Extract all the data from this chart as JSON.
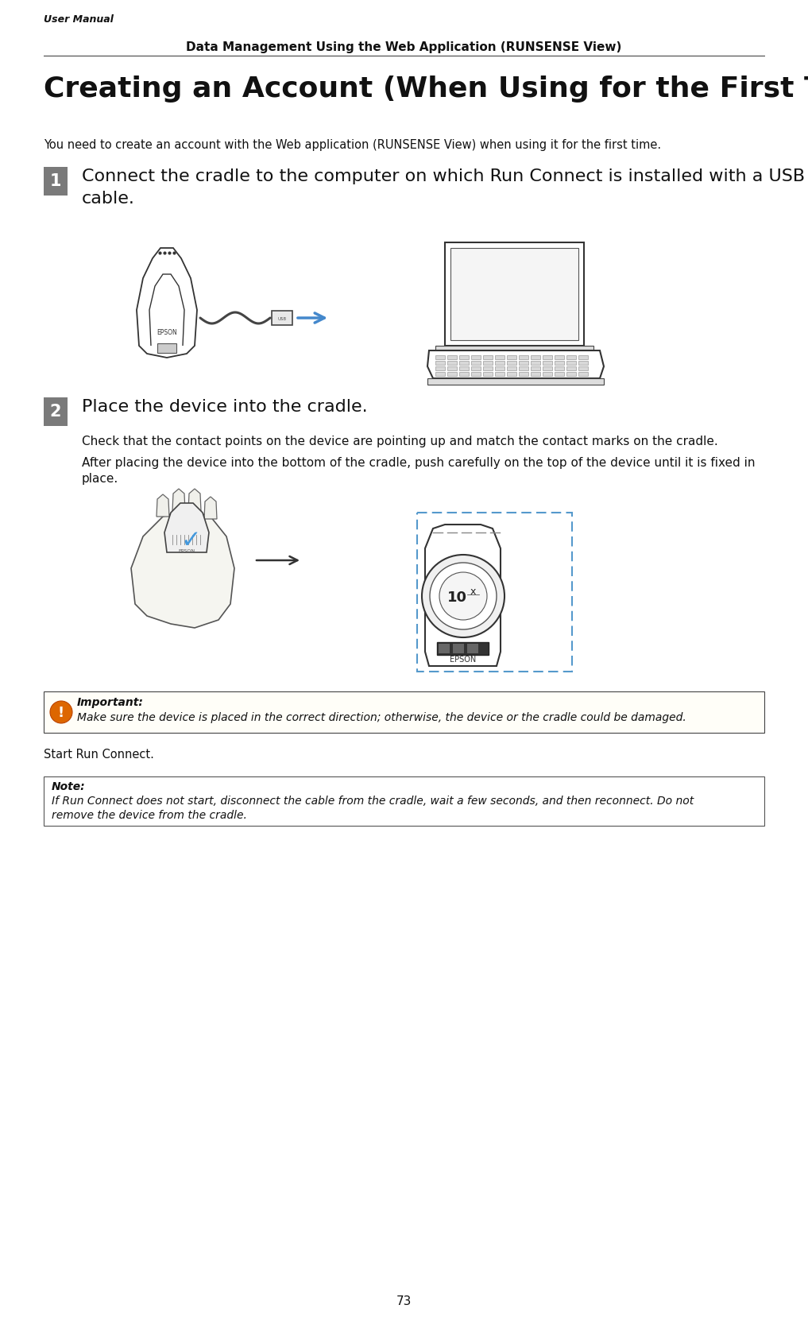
{
  "bg_color": "#ffffff",
  "header_text": "User Manual",
  "subheader_text": "Data Management Using the Web Application (RUNSENSE View)",
  "title_text": "Creating an Account (When Using for the First Time)",
  "intro_text": "You need to create an account with the Web application (RUNSENSE View) when using it for the first time.",
  "step1_num": "1",
  "step1_text_line1": "Connect the cradle to the computer on which Run Connect is installed with a USB",
  "step1_text_line2": "cable.",
  "step2_num": "2",
  "step2_text": "Place the device into the cradle.",
  "step2_sub1": "Check that the contact points on the device are pointing up and match the contact marks on the cradle.",
  "step2_sub2_line1": "After placing the device into the bottom of the cradle, push carefully on the top of the device until it is fixed in",
  "step2_sub2_line2": "place.",
  "important_label": "Important:",
  "important_text": "Make sure the device is placed in the correct direction; otherwise, the device or the cradle could be damaged.",
  "start_text": "Start Run Connect.",
  "note_label": "Note:",
  "note_text_line1": "If Run Connect does not start, disconnect the cable from the cradle, wait a few seconds, and then reconnect. Do not",
  "note_text_line2": "remove the device from the cradle.",
  "page_num": "73",
  "step_badge_color": "#7a7a7a",
  "step_badge_text_color": "#ffffff",
  "arrow_color": "#4488cc",
  "text_color": "#000000",
  "title_fontsize": 26,
  "step_text_fontsize": 16,
  "body_fontsize": 11,
  "small_fontsize": 10.5
}
